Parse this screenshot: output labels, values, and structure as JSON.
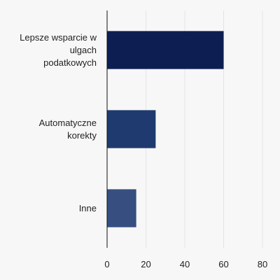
{
  "chart_data": {
    "type": "bar",
    "orientation": "horizontal",
    "title": "",
    "xlabel": "",
    "ylabel": "",
    "categories": [
      [
        "Lepsze wsparcie w",
        "ulgach",
        "podatkowych"
      ],
      [
        "Automatyczne",
        "korekty"
      ],
      [
        "Inne"
      ]
    ],
    "values": [
      60,
      25,
      15
    ],
    "xlim": [
      0,
      80
    ],
    "xticks": [
      0,
      20,
      40,
      60,
      80
    ],
    "grid": "vertical",
    "legend": "none",
    "colors": [
      "#0d1f52",
      "#1f3a6e",
      "#364f80"
    ],
    "gridColor": "#e4e4e4",
    "axisColor": "#111111"
  }
}
